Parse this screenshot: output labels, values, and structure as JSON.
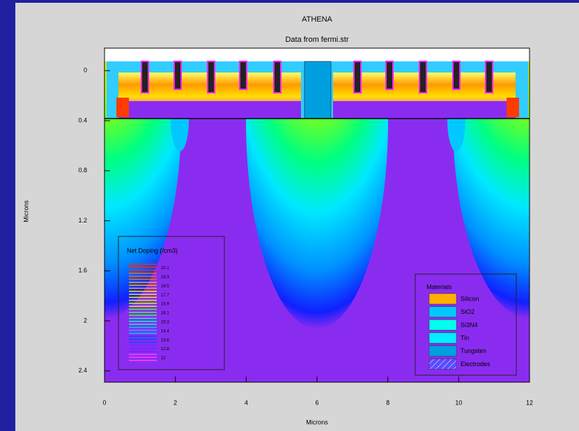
{
  "chart_data": {
    "type": "contour",
    "title": "ATHENA",
    "subtitle": "Data from fermi.str",
    "x_label": "Microns",
    "y_label": "Microns",
    "xlim": [
      0,
      12
    ],
    "ylim": [
      -0.18,
      2.49
    ],
    "y_inverted": true,
    "xticks": [
      0,
      2,
      4,
      6,
      8,
      10,
      12
    ],
    "yticks": [
      0,
      0.4,
      0.8,
      1.2,
      1.6,
      2,
      2.4
    ],
    "doping_legend": {
      "title": "Net Doping (/cm3)",
      "levels": [
        20.1,
        19.3,
        18.5,
        17.7,
        16.9,
        16.1,
        15.3,
        14.4,
        13.6,
        12.8,
        12
      ],
      "colors": [
        "#ff2a00",
        "#ff6a00",
        "#ffa800",
        "#ffe600",
        "#c8ff00",
        "#3cff3c",
        "#00ffc0",
        "#00c8ff",
        "#0050ff",
        "#7a20ff",
        "#ff40ff"
      ]
    },
    "materials_legend": {
      "title": "Materials",
      "items": [
        {
          "name": "Silicon",
          "color": "#ffb000"
        },
        {
          "name": "SiO2",
          "color": "#00c8ff"
        },
        {
          "name": "Si3N4",
          "color": "#00ffee"
        },
        {
          "name": "Tin",
          "color": "#00eeff"
        },
        {
          "name": "Tungsten",
          "color": "#00a0e0"
        },
        {
          "name": "Electrodes",
          "color": "#6a5cff",
          "hatch": true
        }
      ]
    }
  }
}
